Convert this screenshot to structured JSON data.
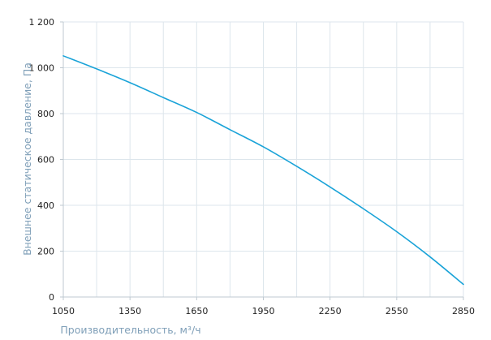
{
  "chart_data": {
    "type": "line",
    "xlabel": "Производительность, м³/ч",
    "ylabel": "Внешнее статическое давление, Па",
    "xlim": [
      1050,
      2850
    ],
    "ylim": [
      0,
      1200
    ],
    "x_ticks": [
      1050,
      1350,
      1650,
      1950,
      2250,
      2550,
      2850
    ],
    "x_tick_labels": [
      "1050",
      "1350",
      "1650",
      "1950",
      "2250",
      "2550",
      "2850"
    ],
    "y_ticks": [
      0,
      200,
      400,
      600,
      800,
      1000,
      1200
    ],
    "y_tick_labels": [
      "0",
      "200",
      "400",
      "600",
      "800",
      "1 000",
      "1 200"
    ],
    "grid": true,
    "series": [
      {
        "x": [
          1050,
          1200,
          1350,
          1500,
          1650,
          1800,
          1950,
          2100,
          2250,
          2400,
          2550,
          2700,
          2850
        ],
        "y": [
          1052,
          995,
          935,
          870,
          805,
          730,
          655,
          570,
          480,
          385,
          285,
          175,
          55
        ],
        "color": "#1aa3d8"
      }
    ],
    "colors": {
      "grid": "#dde6ec",
      "axis": "#bfc9d1",
      "line": "#1aa3d8",
      "axis_title": "#7f9fb8"
    }
  }
}
